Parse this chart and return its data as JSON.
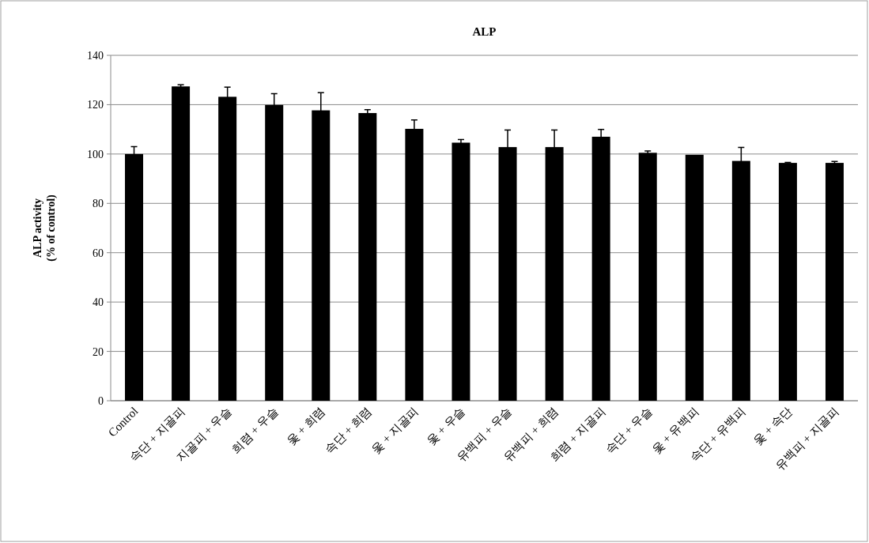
{
  "chart_data": {
    "type": "bar",
    "title": "ALP",
    "ylabel": "ALP activity\n(% of control)",
    "categories": [
      "Control",
      "속단 + 지골피",
      "지골피 + 우슬",
      "희렴 + 우슬",
      "옻 + 희렴",
      "속단 + 희렴",
      "옻 + 지골피",
      "옻 + 우슬",
      "유백피 + 우슬",
      "유백피 + 희렴",
      "희렴 + 지골피",
      "속단 + 우슬",
      "옻 + 유백피",
      "속단 + 유백피",
      "옻 + 속단",
      "유백피 + 지골피"
    ],
    "values": [
      100,
      127.4,
      123.2,
      119.9,
      117.7,
      116.6,
      110.2,
      104.6,
      102.8,
      102.8,
      107,
      100.5,
      99.7,
      97.2,
      96.4,
      96.4
    ],
    "errors": [
      3,
      0.7,
      3.9,
      4.6,
      7.2,
      1.4,
      3.6,
      1.3,
      6.9,
      6.9,
      3,
      0.7,
      null,
      5.5,
      0.2,
      0.6
    ],
    "color": "#000000",
    "ylim": [
      0,
      140
    ],
    "yticks": [
      0,
      20,
      40,
      60,
      80,
      100,
      120,
      140
    ],
    "grid": "y"
  }
}
